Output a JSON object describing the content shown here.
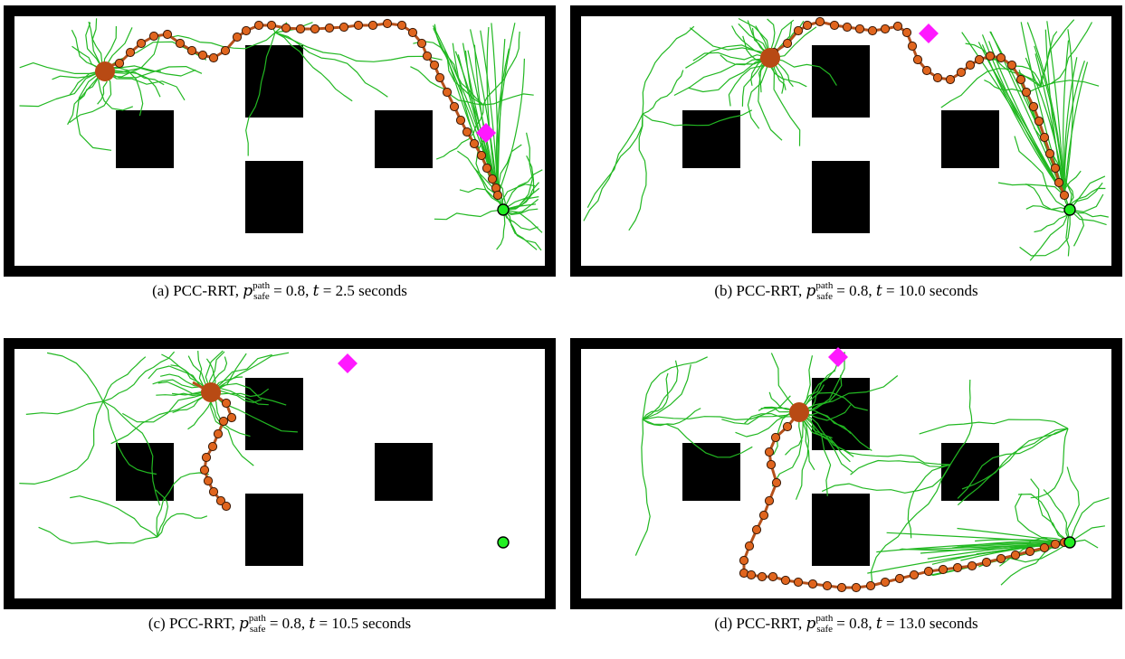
{
  "colors": {
    "tree": "#22b822",
    "path": "#b5501a",
    "node_fill": "#e0651e",
    "node_stroke": "#3a1a08",
    "robot": "#b84a14",
    "goal": "#22ee22",
    "obstacle_marker": "#ff19ff",
    "obstacle": "#000000",
    "border": "#000000"
  },
  "icons": {
    "robot": "filled-circle",
    "goal": "green-circle",
    "dynamic_obstacle": "magenta-diamond",
    "waypoint": "orange-circle"
  },
  "panels": [
    {
      "label": "(a)",
      "method": "PCC-RRT,",
      "sym": "p",
      "sup": "path",
      "sub": "safe",
      "eq": "= 0.8,",
      "tvar": "t",
      "teq": "= 2.5 seconds"
    },
    {
      "label": "(b)",
      "method": "PCC-RRT,",
      "sym": "p",
      "sup": "path",
      "sub": "safe",
      "eq": "= 0.8,",
      "tvar": "t",
      "teq": "= 10.0 seconds"
    },
    {
      "label": "(c)",
      "method": "PCC-RRT,",
      "sym": "p",
      "sup": "path",
      "sub": "safe",
      "eq": "= 0.8,",
      "tvar": "t",
      "teq": "= 10.5 seconds"
    },
    {
      "label": "(d)",
      "method": "PCC-RRT,",
      "sym": "p",
      "sup": "path",
      "sub": "safe",
      "eq": "= 0.8,",
      "tvar": "t",
      "teq": "= 13.0 seconds"
    }
  ]
}
